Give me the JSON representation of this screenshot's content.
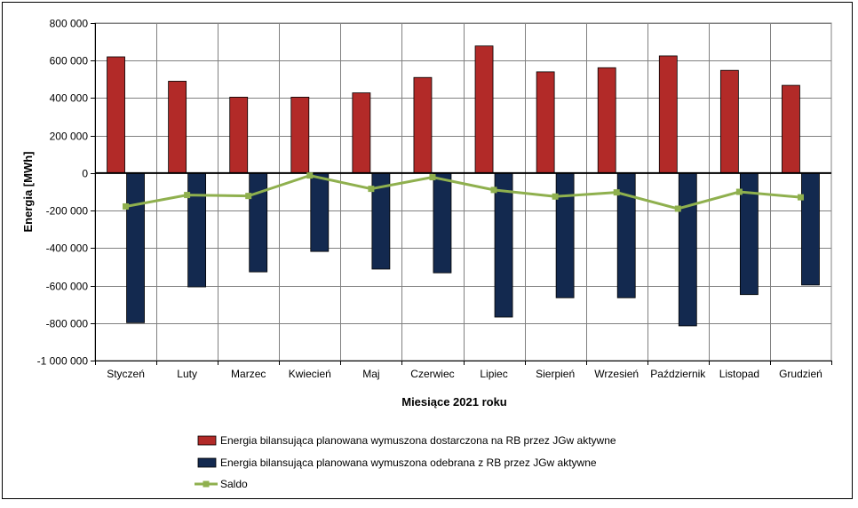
{
  "chart_data": {
    "type": "bar",
    "categories": [
      "Styczeń",
      "Luty",
      "Marzec",
      "Kwiecień",
      "Maj",
      "Czerwiec",
      "Lipiec",
      "Sierpień",
      "Wrzesień",
      "Październik",
      "Listopad",
      "Grudzień"
    ],
    "series": [
      {
        "name": "Energia bilansująca planowana wymuszona dostarczona na RB przez JGw aktywne",
        "kind": "bar",
        "color": "#B22A28",
        "values": [
          620000,
          490000,
          405000,
          405000,
          428000,
          510000,
          678000,
          540000,
          562000,
          625000,
          548000,
          468000
        ]
      },
      {
        "name": "Energia bilansująca planowana wymuszona odebrana z RB przez JGw aktywne",
        "kind": "bar",
        "color": "#13294F",
        "values": [
          -798000,
          -607000,
          -527000,
          -418000,
          -512000,
          -532000,
          -768000,
          -665000,
          -665000,
          -815000,
          -648000,
          -597000
        ]
      },
      {
        "name": "Saldo",
        "kind": "line",
        "color": "#8FB04E",
        "values": [
          -178000,
          -117000,
          -122000,
          -13000,
          -84000,
          -22000,
          -90000,
          -125000,
          -103000,
          -190000,
          -100000,
          -129000
        ]
      }
    ],
    "xlabel": "Miesiące 2021  roku",
    "ylabel": "Energia [MWh]",
    "ylim": [
      -1000000,
      800000
    ],
    "yticks": [
      800000,
      600000,
      400000,
      200000,
      0,
      -200000,
      -400000,
      -600000,
      -800000,
      -1000000
    ],
    "ytick_labels": [
      "800 000",
      "600 000",
      "400 000",
      "200 000",
      "0",
      "-200 000",
      "-400 000",
      "-600 000",
      "-800 000",
      "-1 000 000"
    ],
    "grid": true,
    "legend_position": "bottom"
  }
}
